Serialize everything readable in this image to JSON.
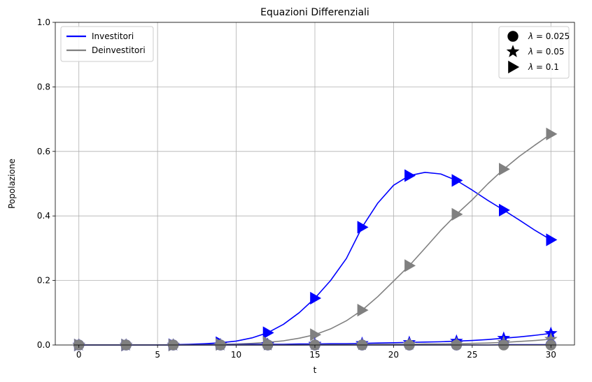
{
  "chart_data": {
    "type": "line",
    "title": "Equazioni Differenziali",
    "xlabel": "t",
    "ylabel": "Popolazione",
    "xlim": [
      -1.5,
      31.5
    ],
    "ylim": [
      0,
      1.0
    ],
    "xticks": [
      0,
      5,
      10,
      15,
      20,
      25,
      30
    ],
    "yticks": [
      0.0,
      0.2,
      0.4,
      0.6,
      0.8,
      1.0
    ],
    "ytick_labels": [
      "0.0",
      "0.2",
      "0.4",
      "0.6",
      "0.8",
      "1.0"
    ],
    "grid": true,
    "colors": {
      "investitori": "#0000ff",
      "deinvestitori": "#808080"
    },
    "x": [
      0,
      1,
      2,
      3,
      4,
      5,
      6,
      7,
      8,
      9,
      10,
      11,
      12,
      13,
      14,
      15,
      16,
      17,
      18,
      19,
      20,
      21,
      22,
      23,
      24,
      25,
      26,
      27,
      28,
      29,
      30
    ],
    "series": [
      {
        "name": "Investitori",
        "lambda": 0.1,
        "kind": "investitori",
        "marker": "triangle",
        "values": [
          0.0,
          0.0,
          0.0,
          0.0,
          0.0,
          0.0,
          0.001,
          0.002,
          0.004,
          0.007,
          0.012,
          0.022,
          0.038,
          0.064,
          0.1,
          0.145,
          0.2,
          0.268,
          0.365,
          0.44,
          0.495,
          0.525,
          0.535,
          0.53,
          0.51,
          0.48,
          0.448,
          0.418,
          0.387,
          0.355,
          0.326
        ]
      },
      {
        "name": "Deinvestitori",
        "lambda": 0.1,
        "kind": "deinvestitori",
        "marker": "triangle",
        "values": [
          0.0,
          0.0,
          0.0,
          0.0,
          0.0,
          0.0,
          0.0,
          0.0,
          0.001,
          0.002,
          0.003,
          0.005,
          0.008,
          0.013,
          0.021,
          0.032,
          0.05,
          0.075,
          0.108,
          0.15,
          0.198,
          0.246,
          0.3,
          0.355,
          0.405,
          0.45,
          0.5,
          0.545,
          0.585,
          0.62,
          0.654
        ]
      },
      {
        "lambda": 0.05,
        "kind": "investitori",
        "marker": "star",
        "values": [
          0.0,
          0.0,
          0.0,
          0.0,
          0.0,
          0.0,
          0.0,
          0.001,
          0.001,
          0.001,
          0.001,
          0.002,
          0.002,
          0.002,
          0.003,
          0.003,
          0.004,
          0.004,
          0.005,
          0.006,
          0.007,
          0.008,
          0.009,
          0.01,
          0.012,
          0.014,
          0.017,
          0.021,
          0.025,
          0.03,
          0.036
        ]
      },
      {
        "lambda": 0.05,
        "kind": "deinvestitori",
        "marker": "star",
        "values": [
          0.0,
          0.0,
          0.0,
          0.0,
          0.0,
          0.0,
          0.0,
          0.0,
          0.0,
          0.0,
          0.0,
          0.0,
          0.0,
          0.0,
          0.0,
          0.001,
          0.001,
          0.001,
          0.001,
          0.002,
          0.002,
          0.002,
          0.003,
          0.003,
          0.004,
          0.005,
          0.006,
          0.008,
          0.011,
          0.014,
          0.018
        ]
      },
      {
        "lambda": 0.025,
        "kind": "investitori",
        "marker": "circle",
        "values": [
          0.0,
          0.0,
          0.0,
          0.0,
          0.0,
          0.0,
          0.0,
          0.0,
          0.0,
          0.0,
          0.0,
          0.0,
          0.0,
          0.0,
          0.0,
          0.0,
          0.0,
          0.0,
          0.0,
          0.0,
          0.0,
          0.0,
          0.0,
          0.0,
          0.0,
          0.0,
          0.0,
          0.001,
          0.001,
          0.001,
          0.001
        ]
      },
      {
        "lambda": 0.025,
        "kind": "deinvestitori",
        "marker": "circle",
        "values": [
          0.0,
          0.0,
          0.0,
          0.0,
          0.0,
          0.0,
          0.0,
          0.0,
          0.0,
          0.0,
          0.0,
          0.0,
          0.0,
          0.0,
          0.0,
          0.0,
          0.0,
          0.0,
          0.0,
          0.0,
          0.0,
          0.0,
          0.0,
          0.0,
          0.0,
          0.0,
          0.0,
          0.0,
          0.0,
          0.0,
          0.0
        ]
      }
    ],
    "legend_series": {
      "placement": "upper-left",
      "entries": [
        {
          "label": "Investitori",
          "kind": "investitori"
        },
        {
          "label": "Deinvestitori",
          "kind": "deinvestitori"
        }
      ]
    },
    "legend_markers": {
      "placement": "upper-right",
      "entries": [
        {
          "marker": "circle",
          "prefix": "λ",
          "value_text": "= 0.025"
        },
        {
          "marker": "star",
          "prefix": "λ",
          "value_text": "= 0.05"
        },
        {
          "marker": "triangle",
          "prefix": "λ",
          "value_text": "= 0.1"
        }
      ]
    }
  }
}
